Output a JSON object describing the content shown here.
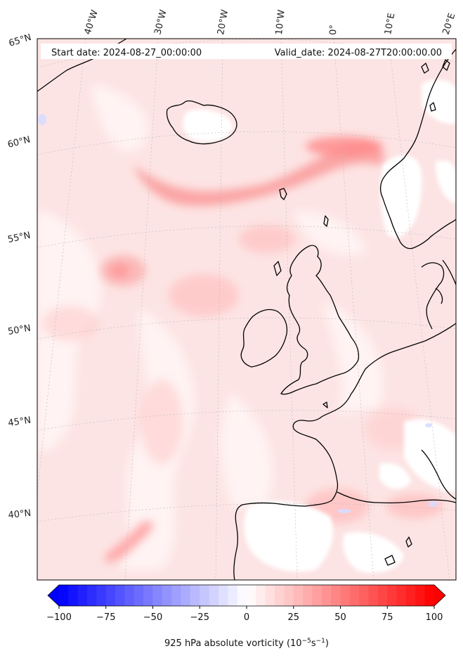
{
  "header": {
    "start_date": "Start date: 2024-08-27_00:00:00",
    "valid_date": "Valid_date: 2024-08-27T20:00:00.00"
  },
  "longitude_labels": [
    "40°W",
    "30°W",
    "20°W",
    "10°W",
    "0°",
    "10°E",
    "20°E"
  ],
  "latitude_labels": [
    "65°N",
    "60°N",
    "55°N",
    "50°N",
    "45°N",
    "40°N"
  ],
  "colorbar": {
    "title_main": "925 hPa absolute vorticity (10",
    "title_exp1": "−5",
    "title_mid": "s",
    "title_exp2": "−1",
    "title_end": ")",
    "ticks": [
      "−100",
      "−75",
      "−50",
      "−25",
      "0",
      "25",
      "50",
      "75",
      "100"
    ],
    "min": -100,
    "max": 100,
    "levels": 40,
    "low_color": "#0000ff",
    "high_color": "#ff0000",
    "extend": "both"
  },
  "colors": {
    "background_field": "#fde4e4",
    "coastline": "#000000",
    "gridline": "#b0b0b0"
  }
}
